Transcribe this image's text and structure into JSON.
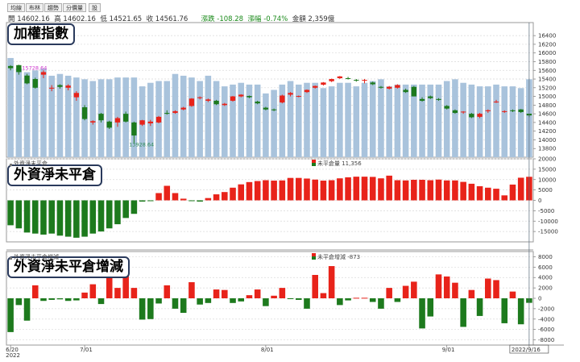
{
  "toolbar": {
    "tabs": [
      "均線",
      "布林",
      "趨勢",
      "分價量",
      "設"
    ]
  },
  "header": {
    "open_label": "開",
    "open": "14602.16",
    "high_label": "高",
    "high": "14602.16",
    "low_label": "低",
    "low": "14521.65",
    "close_label": "收",
    "close": "14561.76",
    "change_label": "漲跌",
    "change": "-108.28",
    "pct_label": "漲幅",
    "pct": "-0.74%",
    "amount_label": "金額",
    "amount": "2,359億"
  },
  "callouts": {
    "index": "加權指數",
    "net": "外資淨未平倉",
    "delta": "外資淨未平倉增減"
  },
  "legends": {
    "net_left": "外資淨未平倉",
    "net_right": "未平倉量 11,356",
    "delta_left": "外資淨未平倉增減",
    "delta_right": "未平倉增減 -873"
  },
  "colors": {
    "up": "#e8231a",
    "down": "#1d7a1d",
    "volume": "#a9c3dc",
    "grid": "#d9d9d9",
    "markerHigh": "#cc33cc",
    "markerLow": "#2e8b57"
  },
  "x_axis": {
    "ticks": [
      {
        "i": 0,
        "label": "6/20"
      },
      {
        "i": 0,
        "label": "2022",
        "row": 2
      },
      {
        "i": 9,
        "label": "7/01"
      },
      {
        "i": 31,
        "label": "8/01"
      },
      {
        "i": 53,
        "label": "9/01"
      },
      {
        "i": 63,
        "label": "2022/9/16"
      }
    ]
  },
  "chart_data": [
    {
      "type": "candlestick",
      "title": "加權指數",
      "ylim": [
        13600,
        16700
      ],
      "yticks": [
        13800,
        14000,
        14200,
        14400,
        14600,
        14800,
        15000,
        15200,
        15400,
        15600,
        15800,
        16000,
        16200,
        16400
      ],
      "annotations": [
        {
          "i": 1,
          "price": 15728.64,
          "label": "15728.64",
          "kind": "high"
        },
        {
          "i": 14,
          "price": 13928.64,
          "label": "13928.64",
          "kind": "low"
        }
      ],
      "candles": [
        [
          15700,
          15720,
          15600,
          15650
        ],
        [
          15720,
          15729,
          15500,
          15560
        ],
        [
          15480,
          15520,
          15280,
          15300
        ],
        [
          15400,
          15430,
          15180,
          15200
        ],
        [
          15500,
          15600,
          15420,
          15560
        ],
        [
          15180,
          15260,
          15120,
          15200
        ],
        [
          15260,
          15280,
          15180,
          15220
        ],
        [
          15200,
          15280,
          15140,
          15250
        ],
        [
          14980,
          15120,
          14900,
          15080
        ],
        [
          14750,
          14800,
          14450,
          14480
        ],
        [
          14400,
          14450,
          14350,
          14430
        ],
        [
          14600,
          14620,
          14400,
          14450
        ],
        [
          14420,
          14440,
          14250,
          14280
        ],
        [
          14400,
          14530,
          14300,
          14500
        ],
        [
          14600,
          14650,
          14400,
          14420
        ],
        [
          14400,
          14420,
          13929,
          14100
        ],
        [
          14350,
          14460,
          14320,
          14450
        ],
        [
          14380,
          14460,
          14320,
          14420
        ],
        [
          14400,
          14550,
          14380,
          14530
        ],
        [
          14620,
          14680,
          14580,
          14600
        ],
        [
          14620,
          14680,
          14600,
          14660
        ],
        [
          14700,
          14760,
          14680,
          14740
        ],
        [
          14780,
          14960,
          14760,
          14950
        ],
        [
          14960,
          15000,
          14930,
          14980
        ],
        [
          14900,
          14950,
          14870,
          14930
        ],
        [
          14900,
          14920,
          14800,
          14820
        ],
        [
          14800,
          14850,
          14780,
          14830
        ],
        [
          14900,
          15010,
          14880,
          15000
        ],
        [
          15000,
          15050,
          14980,
          15040
        ],
        [
          15010,
          15020,
          14960,
          14980
        ],
        [
          14880,
          14900,
          14820,
          14840
        ],
        [
          14740,
          14760,
          14680,
          14700
        ],
        [
          14700,
          14720,
          14660,
          14690
        ],
        [
          14860,
          15040,
          14840,
          15020
        ],
        [
          15040,
          15100,
          15000,
          15080
        ],
        [
          15000,
          15020,
          14980,
          15010
        ],
        [
          15100,
          15160,
          15080,
          15150
        ],
        [
          15200,
          15250,
          15180,
          15240
        ],
        [
          15270,
          15330,
          15250,
          15320
        ],
        [
          15350,
          15410,
          15330,
          15400
        ],
        [
          15420,
          15470,
          15400,
          15460
        ],
        [
          15420,
          15450,
          15390,
          15410
        ],
        [
          15380,
          15400,
          15340,
          15370
        ],
        [
          15360,
          15400,
          15300,
          15380
        ],
        [
          15320,
          15340,
          15260,
          15280
        ],
        [
          15220,
          15240,
          15180,
          15200
        ],
        [
          15180,
          15240,
          15160,
          15220
        ],
        [
          15200,
          15280,
          15180,
          15260
        ],
        [
          15150,
          15180,
          15080,
          15100
        ],
        [
          15220,
          15240,
          15000,
          15000
        ],
        [
          14940,
          14980,
          14880,
          14900
        ],
        [
          15000,
          15020,
          14940,
          14960
        ],
        [
          14940,
          14960,
          14900,
          14920
        ],
        [
          14780,
          14800,
          14700,
          14720
        ],
        [
          14680,
          14700,
          14600,
          14620
        ],
        [
          14640,
          14660,
          14600,
          14650
        ],
        [
          14600,
          14620,
          14500,
          14520
        ],
        [
          14530,
          14620,
          14500,
          14600
        ],
        [
          14660,
          14700,
          14620,
          14680
        ],
        [
          14880,
          14920,
          14850,
          14880
        ],
        [
          14650,
          14680,
          14620,
          14660
        ],
        [
          14680,
          14700,
          14640,
          14660
        ],
        [
          14700,
          14710,
          14620,
          14640
        ],
        [
          14602,
          14602,
          14522,
          14562
        ]
      ],
      "volume": [
        2800,
        2500,
        2400,
        2450,
        2500,
        2300,
        2350,
        2300,
        2250,
        2200,
        2150,
        2200,
        2200,
        2250,
        2250,
        2250,
        2000,
        2100,
        2150,
        2150,
        2350,
        2300,
        2250,
        2150,
        2300,
        2150,
        2000,
        2050,
        2100,
        2050,
        2050,
        1800,
        1900,
        2050,
        2150,
        2050,
        2100,
        2100,
        1950,
        2000,
        2100,
        2100,
        2000,
        2100,
        2150,
        2200,
        2000,
        2050,
        2050,
        2050,
        2050,
        2050,
        2050,
        2150,
        2200,
        2100,
        2050,
        2000,
        2000,
        2050,
        2000,
        2000,
        1950,
        2200
      ],
      "volume_scale_max": 3800
    },
    {
      "type": "bar",
      "title": "外資淨未平倉",
      "ylim": [
        -20000,
        20000
      ],
      "yticks": [
        -15000,
        -10000,
        -5000,
        0,
        5000,
        10000,
        15000,
        20000
      ],
      "values": [
        -12000,
        -13500,
        -15500,
        -16000,
        -16500,
        -16000,
        -17000,
        -17500,
        -18000,
        -17500,
        -16000,
        -15000,
        -13500,
        -11500,
        -8500,
        -6500,
        -600,
        -300,
        3500,
        7000,
        3500,
        800,
        -200,
        -600,
        1100,
        2900,
        4000,
        6100,
        7700,
        8800,
        9300,
        9700,
        9500,
        9600,
        10800,
        10800,
        10500,
        10000,
        9500,
        9700,
        10600,
        11100,
        11400,
        11400,
        11300,
        10600,
        11900,
        9700,
        9600,
        9900,
        9900,
        9700,
        10000,
        9600,
        9600,
        8900,
        8000,
        6800,
        6100,
        5600,
        2400,
        7600,
        10900,
        11356
      ]
    },
    {
      "type": "bar",
      "title": "外資淨未平倉增減",
      "ylim": [
        -9000,
        9000
      ],
      "yticks": [
        -8000,
        -6000,
        -4000,
        -2000,
        0,
        2000,
        4000,
        6000,
        8000
      ],
      "values": [
        -6500,
        -1300,
        -4300,
        2500,
        -500,
        -300,
        -200,
        -500,
        -400,
        1100,
        2700,
        -1100,
        6000,
        2000,
        6200,
        2000,
        -4100,
        -4000,
        -1000,
        2500,
        -2000,
        -2800,
        3100,
        -1200,
        -900,
        1700,
        1600,
        -900,
        -600,
        600,
        1700,
        -1500,
        500,
        2000,
        -100,
        -300,
        -2000,
        4500,
        1000,
        6200,
        -1300,
        -400,
        100,
        100,
        -700,
        -2000,
        2000,
        -700,
        2400,
        3200,
        -5800,
        -3500,
        4600,
        4200,
        3000,
        -5500,
        1600,
        -3400,
        3800,
        3500,
        -4800,
        1300,
        -5000,
        -873
      ]
    }
  ]
}
